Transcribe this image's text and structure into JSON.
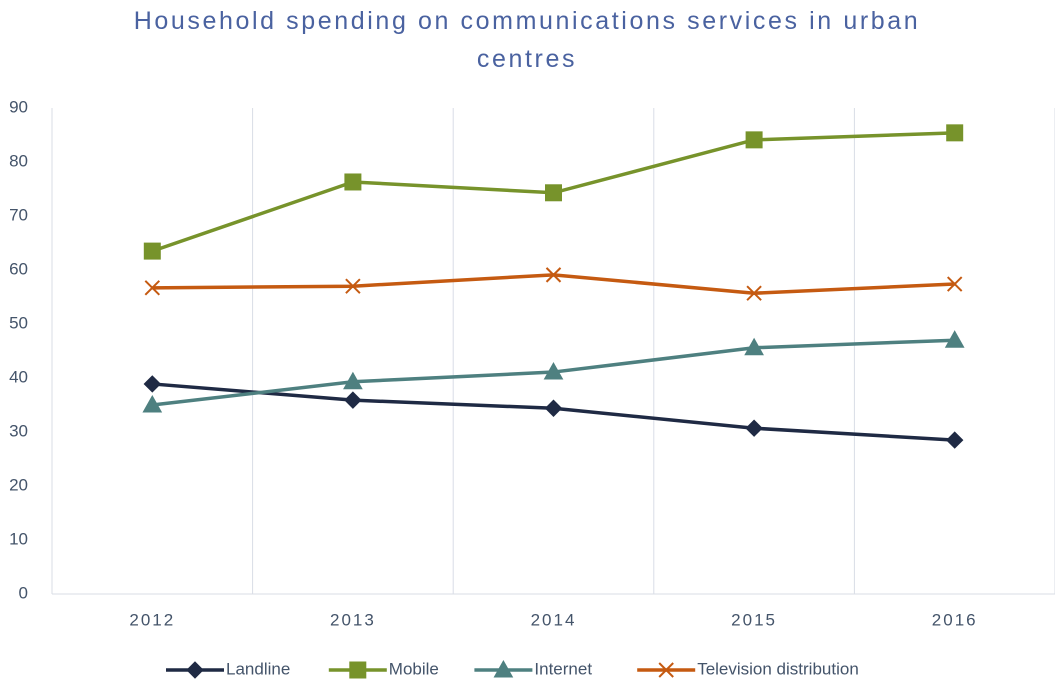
{
  "chart_data": {
    "type": "line",
    "title": "Household spending on communications services in urban centres",
    "categories": [
      "2012",
      "2013",
      "2014",
      "2015",
      "2016"
    ],
    "series": [
      {
        "name": "Landline",
        "color": "#1f2a44",
        "marker": "diamond",
        "values": [
          38.9,
          35.9,
          34.4,
          30.7,
          28.5
        ]
      },
      {
        "name": "Mobile",
        "color": "#77932b",
        "marker": "square",
        "values": [
          63.5,
          76.3,
          74.3,
          84.1,
          85.4
        ]
      },
      {
        "name": "Internet",
        "color": "#4e8080",
        "marker": "triangle",
        "values": [
          35.0,
          39.3,
          41.1,
          45.6,
          47.0
        ]
      },
      {
        "name": "Television distribution",
        "color": "#c55a11",
        "marker": "x",
        "values": [
          56.7,
          57.0,
          59.1,
          55.7,
          57.4
        ]
      }
    ],
    "ylim": [
      0,
      90
    ],
    "yticks": [
      0,
      10,
      20,
      30,
      40,
      50,
      60,
      70,
      80,
      90
    ],
    "grid": false,
    "legend": "bottom"
  }
}
